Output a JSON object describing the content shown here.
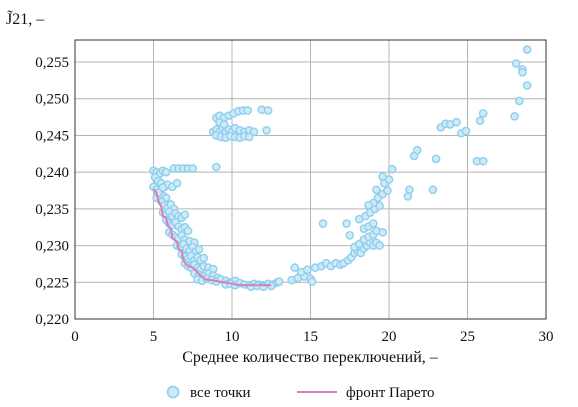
{
  "chart_data": {
    "type": "scatter",
    "ylabel": "J̃21, –",
    "xlabel": "Среднее количество переключений, –",
    "xlim": [
      0,
      30
    ],
    "ylim": [
      0.22,
      0.258
    ],
    "xticks": [
      0,
      5,
      10,
      15,
      20,
      25,
      30
    ],
    "xtick_labels": [
      "0",
      "5",
      "10",
      "15",
      "20",
      "25",
      "30"
    ],
    "yticks": [
      0.22,
      0.225,
      0.23,
      0.235,
      0.24,
      0.245,
      0.25,
      0.255
    ],
    "ytick_labels": [
      "0,220",
      "0,225",
      "0,230",
      "0,235",
      "0,240",
      "0,245",
      "0,250",
      "0,255"
    ],
    "grid": true,
    "legend_position": "bottom",
    "colors": {
      "points_fill": "#cfe9f7",
      "points_stroke": "#8ccfee",
      "front": "#d77fb8",
      "grid": "#b4b4b4"
    },
    "series": [
      {
        "name": "все точки",
        "kind": "scatter",
        "points": [
          [
            5.0,
            0.2402
          ],
          [
            5.2,
            0.24
          ],
          [
            5.4,
            0.2398
          ],
          [
            5.6,
            0.2402
          ],
          [
            5.8,
            0.24
          ],
          [
            5.1,
            0.2393
          ],
          [
            5.3,
            0.2388
          ],
          [
            5.5,
            0.2385
          ],
          [
            5.7,
            0.238
          ],
          [
            5.9,
            0.2383
          ],
          [
            6.2,
            0.238
          ],
          [
            6.5,
            0.2385
          ],
          [
            5.0,
            0.238
          ],
          [
            5.2,
            0.2376
          ],
          [
            5.4,
            0.2372
          ],
          [
            5.6,
            0.2368
          ],
          [
            5.8,
            0.2365
          ],
          [
            5.5,
            0.236
          ],
          [
            5.7,
            0.2355
          ],
          [
            5.9,
            0.2352
          ],
          [
            6.1,
            0.2356
          ],
          [
            6.3,
            0.235
          ],
          [
            5.6,
            0.2345
          ],
          [
            5.8,
            0.2342
          ],
          [
            6.0,
            0.2346
          ],
          [
            6.2,
            0.234
          ],
          [
            6.4,
            0.2344
          ],
          [
            6.6,
            0.234
          ],
          [
            6.8,
            0.2338
          ],
          [
            7.0,
            0.2342
          ],
          [
            5.8,
            0.2335
          ],
          [
            6.0,
            0.233
          ],
          [
            6.2,
            0.2328
          ],
          [
            6.4,
            0.2332
          ],
          [
            6.6,
            0.2326
          ],
          [
            6.8,
            0.2322
          ],
          [
            7.0,
            0.2325
          ],
          [
            7.2,
            0.232
          ],
          [
            6.0,
            0.2318
          ],
          [
            6.2,
            0.2315
          ],
          [
            6.4,
            0.2312
          ],
          [
            6.6,
            0.231
          ],
          [
            6.8,
            0.2314
          ],
          [
            7.0,
            0.2308
          ],
          [
            7.3,
            0.2306
          ],
          [
            7.6,
            0.2304
          ],
          [
            6.5,
            0.23
          ],
          [
            6.7,
            0.2298
          ],
          [
            6.9,
            0.2302
          ],
          [
            7.1,
            0.2296
          ],
          [
            7.3,
            0.2293
          ],
          [
            7.5,
            0.2298
          ],
          [
            7.7,
            0.2292
          ],
          [
            7.9,
            0.2295
          ],
          [
            6.8,
            0.2288
          ],
          [
            7.0,
            0.2285
          ],
          [
            7.2,
            0.2282
          ],
          [
            7.4,
            0.2286
          ],
          [
            7.6,
            0.228
          ],
          [
            7.8,
            0.2284
          ],
          [
            8.0,
            0.228
          ],
          [
            8.2,
            0.2283
          ],
          [
            7.0,
            0.2276
          ],
          [
            7.2,
            0.2272
          ],
          [
            7.4,
            0.227
          ],
          [
            7.6,
            0.2274
          ],
          [
            7.8,
            0.227
          ],
          [
            8.0,
            0.2268
          ],
          [
            8.2,
            0.2272
          ],
          [
            8.5,
            0.227
          ],
          [
            8.8,
            0.2268
          ],
          [
            7.6,
            0.2262
          ],
          [
            7.9,
            0.226
          ],
          [
            8.2,
            0.2258
          ],
          [
            8.5,
            0.2262
          ],
          [
            8.8,
            0.2259
          ],
          [
            9.1,
            0.2256
          ],
          [
            7.8,
            0.2254
          ],
          [
            8.1,
            0.2252
          ],
          [
            8.4,
            0.2255
          ],
          [
            8.7,
            0.2253
          ],
          [
            9.0,
            0.2251
          ],
          [
            9.3,
            0.2254
          ],
          [
            9.6,
            0.2252
          ],
          [
            9.9,
            0.225
          ],
          [
            10.2,
            0.2252
          ],
          [
            9.6,
            0.2247
          ],
          [
            9.9,
            0.2248
          ],
          [
            10.2,
            0.2246
          ],
          [
            10.5,
            0.2249
          ],
          [
            10.8,
            0.2247
          ],
          [
            11.1,
            0.2246
          ],
          [
            11.4,
            0.2248
          ],
          [
            11.7,
            0.2247
          ],
          [
            12.0,
            0.2246
          ],
          [
            12.3,
            0.2248
          ],
          [
            12.6,
            0.2247
          ],
          [
            12.9,
            0.225
          ],
          [
            11.2,
            0.2244
          ],
          [
            11.6,
            0.2245
          ],
          [
            12.0,
            0.2244
          ],
          [
            12.5,
            0.2245
          ],
          [
            13.0,
            0.2251
          ],
          [
            6.3,
            0.2405
          ],
          [
            6.6,
            0.2405
          ],
          [
            6.9,
            0.2405
          ],
          [
            7.2,
            0.2405
          ],
          [
            7.5,
            0.2405
          ],
          [
            5.2,
            0.2365
          ],
          [
            5.3,
            0.2372
          ],
          [
            5.6,
            0.2379
          ],
          [
            9.0,
            0.2407
          ],
          [
            8.8,
            0.2455
          ],
          [
            9.0,
            0.2458
          ],
          [
            9.2,
            0.2455
          ],
          [
            9.4,
            0.246
          ],
          [
            9.6,
            0.2455
          ],
          [
            9.8,
            0.2458
          ],
          [
            10.0,
            0.2455
          ],
          [
            10.2,
            0.246
          ],
          [
            10.5,
            0.2457
          ],
          [
            10.8,
            0.2455
          ],
          [
            11.1,
            0.2457
          ],
          [
            11.4,
            0.2455
          ],
          [
            9.0,
            0.2474
          ],
          [
            9.2,
            0.2477
          ],
          [
            9.5,
            0.2474
          ],
          [
            9.8,
            0.2477
          ],
          [
            10.1,
            0.248
          ],
          [
            10.4,
            0.2483
          ],
          [
            10.7,
            0.2484
          ],
          [
            11.0,
            0.2484
          ],
          [
            9.0,
            0.245
          ],
          [
            9.3,
            0.2448
          ],
          [
            9.6,
            0.2447
          ],
          [
            9.9,
            0.2449
          ],
          [
            10.2,
            0.2448
          ],
          [
            10.5,
            0.2447
          ],
          [
            10.8,
            0.2449
          ],
          [
            11.1,
            0.2448
          ],
          [
            11.9,
            0.2485
          ],
          [
            12.3,
            0.2484
          ],
          [
            12.2,
            0.2457
          ],
          [
            9.2,
            0.2468
          ],
          [
            9.5,
            0.2465
          ],
          [
            13.8,
            0.2253
          ],
          [
            14.2,
            0.2256
          ],
          [
            14.6,
            0.2258
          ],
          [
            15.0,
            0.2255
          ],
          [
            14.4,
            0.2264
          ],
          [
            14.8,
            0.2267
          ],
          [
            14.0,
            0.227
          ],
          [
            15.1,
            0.2251
          ],
          [
            15.3,
            0.227
          ],
          [
            15.7,
            0.2272
          ],
          [
            16.0,
            0.2276
          ],
          [
            16.3,
            0.2272
          ],
          [
            16.6,
            0.2276
          ],
          [
            16.9,
            0.2274
          ],
          [
            17.1,
            0.2276
          ],
          [
            17.4,
            0.228
          ],
          [
            17.6,
            0.2284
          ],
          [
            17.8,
            0.229
          ],
          [
            18.0,
            0.2293
          ],
          [
            18.2,
            0.229
          ],
          [
            18.4,
            0.2296
          ],
          [
            18.6,
            0.23
          ],
          [
            18.8,
            0.2304
          ],
          [
            19.0,
            0.23
          ],
          [
            19.2,
            0.2304
          ],
          [
            19.4,
            0.23
          ],
          [
            17.8,
            0.2298
          ],
          [
            18.1,
            0.2302
          ],
          [
            18.4,
            0.2308
          ],
          [
            18.7,
            0.2312
          ],
          [
            19.0,
            0.2315
          ],
          [
            19.2,
            0.232
          ],
          [
            18.4,
            0.2323
          ],
          [
            18.7,
            0.2326
          ],
          [
            19.0,
            0.233
          ],
          [
            18.1,
            0.2336
          ],
          [
            18.5,
            0.234
          ],
          [
            18.8,
            0.2345
          ],
          [
            19.1,
            0.235
          ],
          [
            19.4,
            0.2354
          ],
          [
            19.0,
            0.2358
          ],
          [
            18.7,
            0.2355
          ],
          [
            19.3,
            0.2365
          ],
          [
            19.6,
            0.237
          ],
          [
            19.9,
            0.2375
          ],
          [
            19.7,
            0.2385
          ],
          [
            20.0,
            0.239
          ],
          [
            19.6,
            0.2394
          ],
          [
            20.2,
            0.2404
          ],
          [
            17.5,
            0.2314
          ],
          [
            19.2,
            0.2376
          ],
          [
            15.8,
            0.233
          ],
          [
            17.3,
            0.233
          ],
          [
            19.6,
            0.2318
          ],
          [
            21.3,
            0.2376
          ],
          [
            21.2,
            0.2367
          ],
          [
            21.6,
            0.2422
          ],
          [
            21.8,
            0.243
          ],
          [
            22.8,
            0.2376
          ],
          [
            23.0,
            0.2418
          ],
          [
            23.3,
            0.2461
          ],
          [
            23.6,
            0.2466
          ],
          [
            23.9,
            0.2465
          ],
          [
            24.3,
            0.2468
          ],
          [
            24.6,
            0.2453
          ],
          [
            24.9,
            0.2456
          ],
          [
            25.6,
            0.2415
          ],
          [
            26.0,
            0.2415
          ],
          [
            25.8,
            0.247
          ],
          [
            26.0,
            0.248
          ],
          [
            28.0,
            0.2476
          ],
          [
            28.3,
            0.2497
          ],
          [
            28.1,
            0.2548
          ],
          [
            28.5,
            0.254
          ],
          [
            28.5,
            0.2536
          ],
          [
            28.8,
            0.2518
          ],
          [
            28.8,
            0.2567
          ]
        ]
      },
      {
        "name": "фронт Парето",
        "kind": "line",
        "points": [
          [
            5.0,
            0.2377
          ],
          [
            5.2,
            0.2372
          ],
          [
            5.3,
            0.2361
          ],
          [
            5.5,
            0.2353
          ],
          [
            5.6,
            0.234
          ],
          [
            5.8,
            0.2338
          ],
          [
            5.9,
            0.2328
          ],
          [
            6.1,
            0.2323
          ],
          [
            6.2,
            0.231
          ],
          [
            6.5,
            0.2305
          ],
          [
            6.6,
            0.2296
          ],
          [
            6.8,
            0.2292
          ],
          [
            6.9,
            0.2281
          ],
          [
            7.0,
            0.2277
          ],
          [
            7.2,
            0.2272
          ],
          [
            7.5,
            0.227
          ],
          [
            7.7,
            0.2266
          ],
          [
            7.9,
            0.2261
          ],
          [
            8.1,
            0.2258
          ],
          [
            8.3,
            0.2254
          ],
          [
            8.7,
            0.2253
          ],
          [
            9.2,
            0.2251
          ],
          [
            9.8,
            0.2249
          ],
          [
            10.2,
            0.2247
          ],
          [
            10.8,
            0.2246
          ],
          [
            11.5,
            0.2246
          ],
          [
            12.1,
            0.2246
          ],
          [
            12.5,
            0.2246
          ]
        ]
      }
    ]
  }
}
